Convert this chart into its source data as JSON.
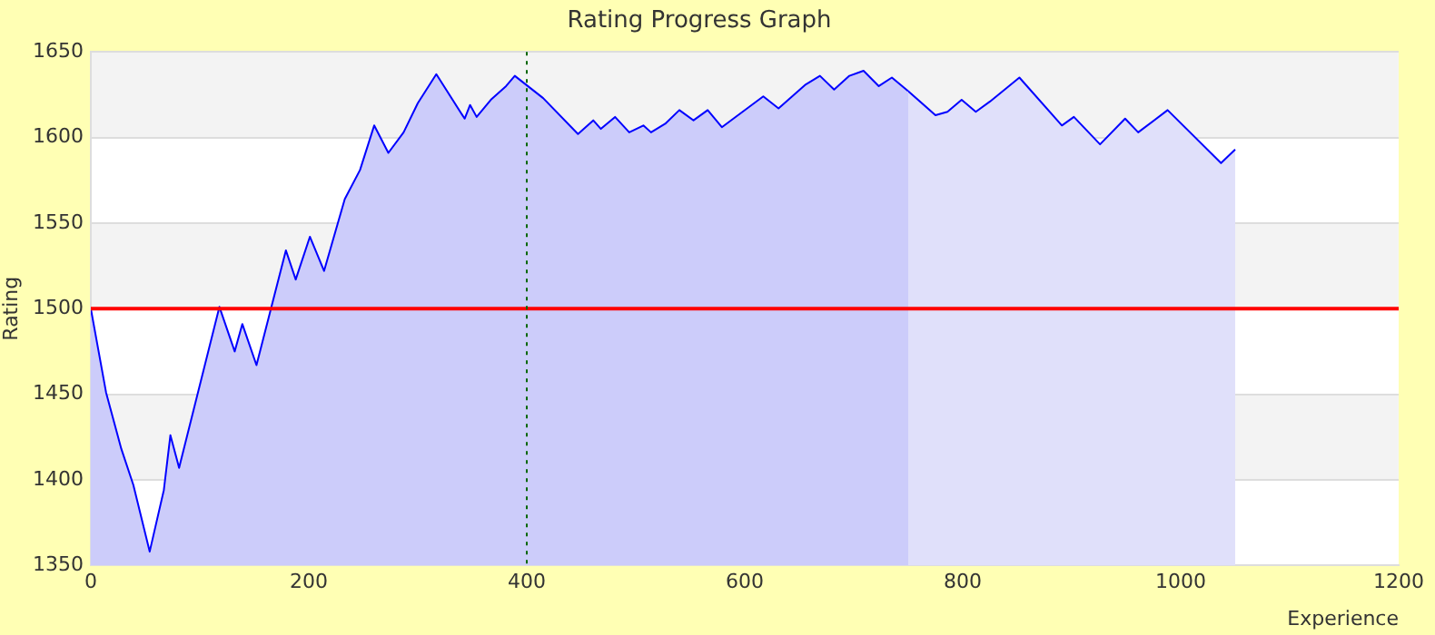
{
  "chart_data": {
    "type": "area",
    "title": "Rating Progress Graph",
    "xlabel": "Experience",
    "ylabel": "Rating",
    "xlim": [
      0,
      1200
    ],
    "xticks": [
      0,
      200,
      400,
      600,
      800,
      1000,
      1200
    ],
    "ylim": [
      1350,
      1650
    ],
    "yticks": [
      1350,
      1400,
      1450,
      1500,
      1550,
      1600,
      1650
    ],
    "grid": "y",
    "legend": false,
    "marker": "none",
    "line_style": "solid",
    "series": [
      {
        "color": "#ccccfa",
        "x": [
          0,
          14,
          28,
          39,
          54,
          67,
          73,
          81,
          118,
          132,
          139,
          152,
          179,
          188,
          201,
          214,
          233,
          247,
          260,
          273,
          287,
          300,
          317,
          343,
          348,
          354,
          367,
          381,
          389,
          415,
          447,
          461,
          468,
          481,
          494,
          507,
          514,
          527,
          540,
          553,
          566,
          579,
          617,
          631,
          656,
          669,
          682,
          696,
          709,
          723,
          735,
          750
        ],
        "values": [
          1500,
          1451,
          1418,
          1397,
          1358,
          1394,
          1426,
          1407,
          1501,
          1475,
          1491,
          1467,
          1534,
          1517,
          1542,
          1522,
          1564,
          1581,
          1607,
          1591,
          1603,
          1620,
          1637,
          1611,
          1619,
          1612,
          1622,
          1630,
          1636,
          1623,
          1602,
          1610,
          1605,
          1612,
          1603,
          1607,
          1603,
          1608,
          1616,
          1610,
          1616,
          1606,
          1624,
          1617,
          1631,
          1636,
          1628,
          1636,
          1639,
          1630,
          1635,
          1627
        ]
      },
      {
        "color": "#e0e0fa",
        "x": [
          750,
          775,
          786,
          799,
          812,
          825,
          852,
          891,
          902,
          926,
          949,
          961,
          988,
          1037,
          1050
        ],
        "values": [
          1627,
          1613,
          1615,
          1622,
          1615,
          1621,
          1635,
          1607,
          1612,
          1596,
          1611,
          1603,
          1616,
          1585,
          1593
        ]
      }
    ],
    "ref_lines": [
      {
        "axis": "y",
        "value": 1500,
        "color": "#ff0000",
        "line_style": "solid"
      },
      {
        "axis": "x",
        "value": 400,
        "color": "#006600",
        "line_style": "dotted"
      }
    ]
  }
}
